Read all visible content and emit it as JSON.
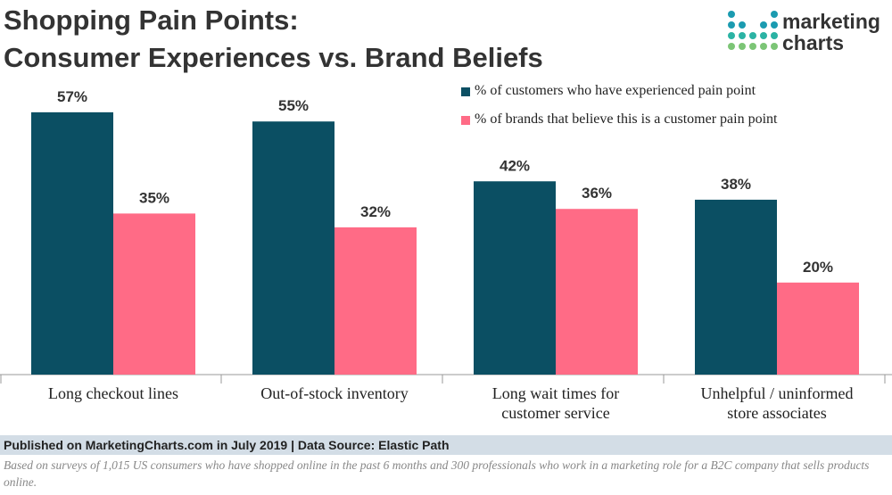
{
  "chart_data": {
    "type": "bar",
    "title": "Shopping Pain Points:\nConsumer Experiences vs. Brand Beliefs",
    "categories": [
      "Long checkout lines",
      "Out-of-stock inventory",
      "Long wait times for customer service",
      "Unhelpful / uninformed store associates"
    ],
    "series": [
      {
        "name": "% of customers who have experienced pain point",
        "color": "#0b4f63",
        "values": [
          57,
          55,
          42,
          38
        ],
        "value_labels": [
          "57%",
          "55%",
          "42%",
          "38%"
        ]
      },
      {
        "name": "% of brands that believe this is a customer pain point",
        "color": "#ff6b86",
        "values": [
          35,
          32,
          36,
          20
        ],
        "value_labels": [
          "35%",
          "32%",
          "36%",
          "20%"
        ]
      }
    ],
    "legend": "top-right"
  },
  "logo": {
    "line1": "marketing",
    "line2": "charts"
  },
  "footer": {
    "source": "Published on MarketingCharts.com in July 2019 | Data Source: Elastic Path",
    "note": "Based on surveys of 1,015 US consumers who have shopped online in the past 6 months and 300 professionals who work in a marketing role for a B2C company that sells products online."
  }
}
